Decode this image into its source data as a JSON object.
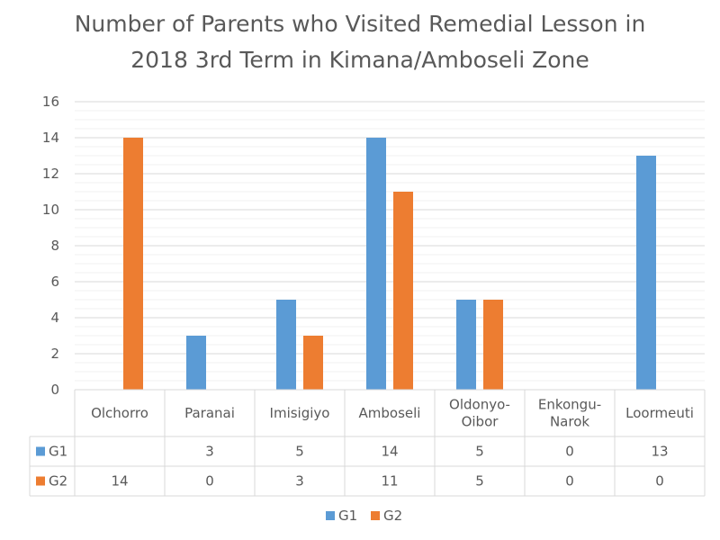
{
  "chart_data": {
    "type": "bar",
    "title_lines": [
      "Number of Parents who Visited Remedial Lesson in",
      "2018 3rd Term in Kimana/Amboseli Zone"
    ],
    "categories": [
      [
        "Olchorro"
      ],
      [
        "Paranai"
      ],
      [
        "Imisigiyo"
      ],
      [
        "Amboseli"
      ],
      [
        "Oldonyo-",
        "Oibor"
      ],
      [
        "Enkongu-",
        "Narok"
      ],
      [
        "Loormeuti"
      ]
    ],
    "series": [
      {
        "name": "G1",
        "color": "#5B9BD5",
        "values": [
          null,
          3,
          5,
          14,
          5,
          0,
          13
        ],
        "table_labels": [
          "",
          "3",
          "5",
          "14",
          "5",
          "0",
          "13"
        ]
      },
      {
        "name": "G2",
        "color": "#ED7D31",
        "values": [
          14,
          0,
          3,
          11,
          5,
          0,
          0
        ],
        "table_labels": [
          "14",
          "0",
          "3",
          "11",
          "5",
          "0",
          "0"
        ]
      }
    ],
    "ylim": [
      0,
      16
    ],
    "yticks": [
      "0",
      "2",
      "4",
      "6",
      "8",
      "10",
      "12",
      "14",
      "16"
    ],
    "grid": true,
    "legend_position": "bottom",
    "data_table": true
  }
}
